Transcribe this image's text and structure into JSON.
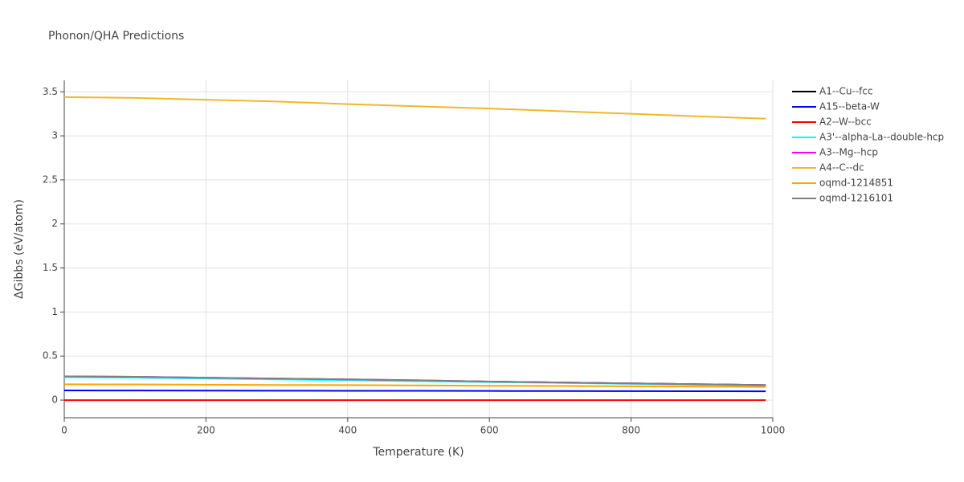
{
  "chart_data": {
    "type": "line",
    "title": "Phonon/QHA Predictions",
    "x_label": "Temperature (K)",
    "y_label": "ΔGibbs (eV/atom)",
    "x": [
      0,
      100,
      200,
      300,
      400,
      500,
      600,
      700,
      800,
      900,
      990
    ],
    "series": [
      {
        "name": "A1--Cu--fcc",
        "color": "#000000",
        "values": [
          0.265,
          0.26,
          0.25,
          0.24,
          0.23,
          0.22,
          0.21,
          0.2,
          0.19,
          0.18,
          0.17
        ]
      },
      {
        "name": "A15--beta-W",
        "color": "#0000ff",
        "values": [
          0.11,
          0.109,
          0.108,
          0.107,
          0.106,
          0.105,
          0.104,
          0.103,
          0.102,
          0.101,
          0.1
        ]
      },
      {
        "name": "A2--W--bcc",
        "color": "#ff0000",
        "values": [
          0,
          0,
          0,
          0,
          0,
          0,
          0,
          0,
          0,
          0,
          0
        ]
      },
      {
        "name": "A3'--alpha-La--double-hcp",
        "color": "#00ffff",
        "values": [
          0.26,
          0.255,
          0.245,
          0.235,
          0.225,
          0.215,
          0.205,
          0.195,
          0.185,
          0.175,
          0.165
        ]
      },
      {
        "name": "A3--Mg--hcp",
        "color": "#ff00ff",
        "values": [
          0.27,
          0.265,
          0.255,
          0.245,
          0.235,
          0.225,
          0.21,
          0.2,
          0.19,
          0.18,
          0.17
        ]
      },
      {
        "name": "A4--C--dc",
        "color": "#f0b828",
        "values": [
          3.44,
          3.43,
          3.41,
          3.39,
          3.36,
          3.335,
          3.31,
          3.28,
          3.25,
          3.22,
          3.195
        ]
      },
      {
        "name": "oqmd-1214851",
        "color": "#ffa500",
        "values": [
          0.18,
          0.178,
          0.175,
          0.172,
          0.17,
          0.167,
          0.163,
          0.16,
          0.157,
          0.153,
          0.15
        ]
      },
      {
        "name": "oqmd-1216101",
        "color": "#808080",
        "values": [
          0.27,
          0.265,
          0.255,
          0.245,
          0.235,
          0.225,
          0.21,
          0.2,
          0.19,
          0.18,
          0.17
        ]
      }
    ],
    "xlim": [
      0,
      1000
    ],
    "xticks": [
      0,
      200,
      400,
      600,
      800,
      1000
    ],
    "ylim": [
      -0.2,
      3.63
    ],
    "yticks": [
      0,
      0.5,
      1,
      1.5,
      2,
      2.5,
      3,
      3.5
    ],
    "grid": true,
    "legend": "right"
  }
}
